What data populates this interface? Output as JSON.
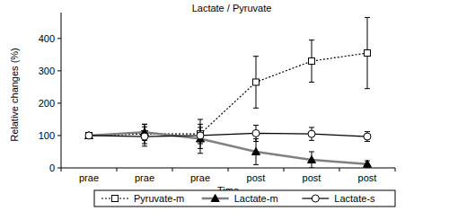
{
  "chart_data": {
    "type": "line",
    "title": "Lactate / Pyruvate",
    "x_label": "Time",
    "y_label": "Relative changes (%)",
    "categories": [
      "prae",
      "prae",
      "prae",
      "post",
      "post",
      "post"
    ],
    "ylim": [
      0,
      480
    ],
    "yticks": [
      0,
      100,
      200,
      300,
      400
    ],
    "grid": false,
    "legend": "bottom",
    "series": [
      {
        "name": "Pyruvate-m",
        "color": "#000000",
        "marker": "square",
        "line_style": "dotted",
        "values": [
          100,
          105,
          105,
          265,
          330,
          355
        ],
        "errors": [
          0,
          30,
          45,
          80,
          65,
          110
        ]
      },
      {
        "name": "Lactate-m",
        "color": "#808080",
        "marker": "triangle",
        "line_style": "solid",
        "values": [
          100,
          110,
          90,
          50,
          25,
          12
        ],
        "errors": [
          0,
          25,
          45,
          40,
          25,
          10
        ]
      },
      {
        "name": "Lactate-s",
        "color": "#000000",
        "marker": "circle",
        "line_style": "solid",
        "values": [
          100,
          97,
          100,
          107,
          105,
          97
        ],
        "errors": [
          0,
          30,
          25,
          25,
          20,
          15
        ]
      }
    ]
  }
}
